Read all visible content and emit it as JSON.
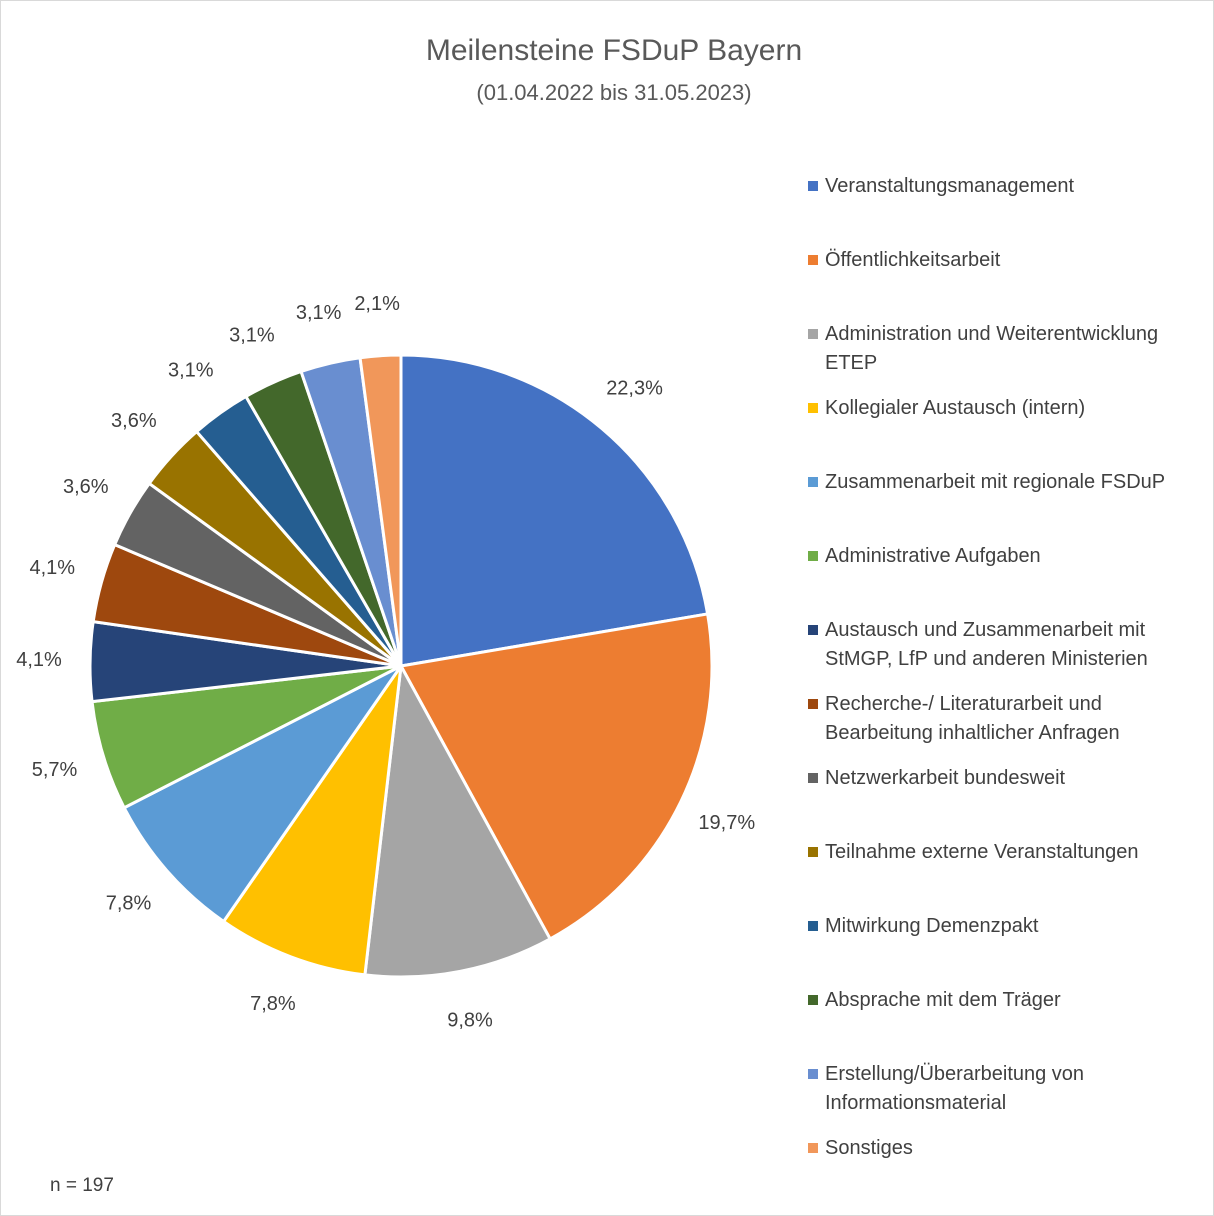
{
  "chart_data": {
    "type": "pie",
    "title": "Meilensteine FSDuP Bayern",
    "subtitle": "(01.04.2022 bis 31.05.2023)",
    "note": "n = 197",
    "categories": [
      "Veranstaltungsmanagement",
      "Öffentlichkeitsarbeit",
      "Administration und Weiterentwicklung ETEP",
      "Kollegialer Austausch (intern)",
      "Zusammenarbeit mit regionale FSDuP",
      "Administrative Aufgaben",
      "Austausch und Zusammenarbeit mit StMGP, LfP und anderen Ministerien",
      "Recherche-/ Literaturarbeit und Bearbeitung inhaltlicher Anfragen",
      "Netzwerkarbeit bundesweit",
      "Teilnahme externe Veranstaltungen",
      "Mitwirkung Demenzpakt",
      "Absprache mit dem Träger",
      "Erstellung/Überarbeitung von Informationsmaterial",
      "Sonstiges"
    ],
    "values": [
      22.3,
      19.7,
      9.8,
      7.8,
      7.8,
      5.7,
      4.1,
      4.1,
      3.6,
      3.6,
      3.1,
      3.1,
      3.1,
      2.1
    ],
    "value_labels": [
      "22,3%",
      "19,7%",
      "9,8%",
      "7,8%",
      "7,8%",
      "5,7%",
      "4,1%",
      "4,1%",
      "3,6%",
      "3,6%",
      "3,1%",
      "3,1%",
      "3,1%",
      "2,1%"
    ],
    "colors": [
      "#4472c4",
      "#ed7d31",
      "#a5a5a5",
      "#ffc000",
      "#5b9bd5",
      "#70ad47",
      "#264478",
      "#9e480e",
      "#636363",
      "#997300",
      "#255e91",
      "#43682b",
      "#698ed0",
      "#f1975a"
    ],
    "legend": "right"
  }
}
